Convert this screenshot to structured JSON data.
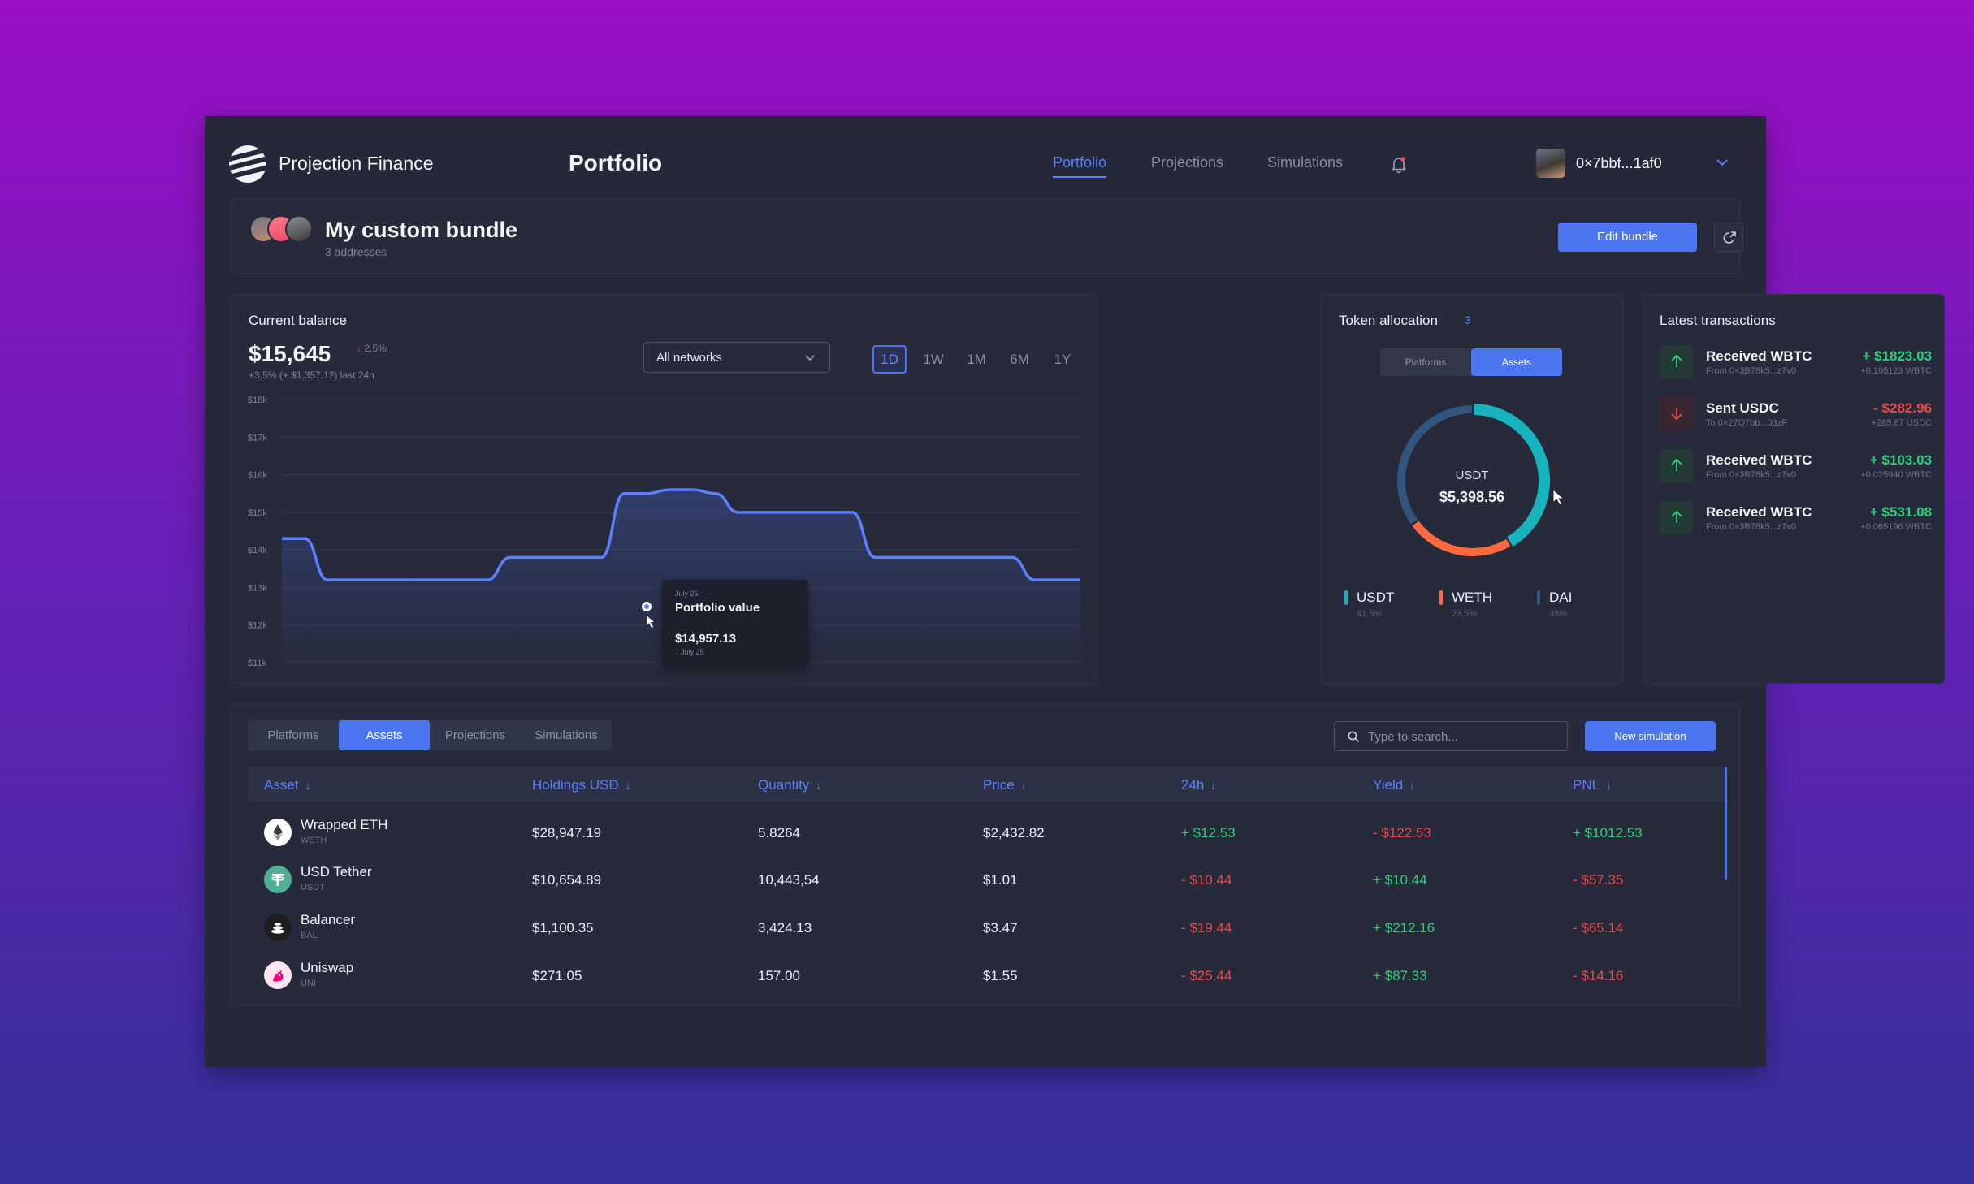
{
  "header": {
    "brand": "Projection Finance",
    "page_title": "Portfolio",
    "nav": [
      "Portfolio",
      "Projections",
      "Simulations"
    ],
    "active_nav": "Portfolio",
    "wallet": "0×7bbf...1af0"
  },
  "bundle": {
    "title": "My custom bundle",
    "subtitle": "3 addresses",
    "edit_label": "Edit bundle"
  },
  "balance": {
    "title": "Current balance",
    "value": "$15,645",
    "change": "2,5%",
    "sub": "+3,5% (+ $1,357.12) last 24h",
    "network": "All networks",
    "ranges": [
      "1D",
      "1W",
      "1M",
      "6M",
      "1Y"
    ],
    "active_range": "1D",
    "tooltip": {
      "date": "July 25",
      "title": "Portfolio value",
      "value": "$14,957.13",
      "sub": "July 25"
    }
  },
  "chart_data": {
    "type": "line",
    "title": "",
    "y_ticks": [
      "$18k",
      "$17k",
      "$16k",
      "$15k",
      "$14k",
      "$13k",
      "$12k",
      "$11k"
    ],
    "ylim": [
      11000,
      18000
    ],
    "grid": true,
    "series": [
      {
        "values": [
          14300,
          14300,
          13200,
          13200,
          13200,
          13200,
          13200,
          13200,
          13200,
          13200,
          13800,
          13800,
          13800,
          13800,
          13800,
          15500,
          15500,
          15600,
          15600,
          15500,
          15000,
          15000,
          15000,
          15000,
          15000,
          15000,
          13800,
          13800,
          13800,
          13800,
          13800,
          13800,
          13800,
          13200,
          13200,
          13200
        ],
        "color": "#5b7fff"
      }
    ]
  },
  "tokens": {
    "title": "Token allocation",
    "count": "3",
    "toggle": [
      "Platforms",
      "Assets"
    ],
    "active_toggle": "Assets",
    "center_label": "USDT",
    "center_value": "$5,398.56",
    "legend": [
      {
        "name": "USDT",
        "pct": "41,5%",
        "color": "#17b3bd"
      },
      {
        "name": "WETH",
        "pct": "23,5%",
        "color": "#ff6a3d"
      },
      {
        "name": "DAI",
        "pct": "35%",
        "color": "#33547c"
      }
    ]
  },
  "transactions": {
    "title": "Latest transactions",
    "items": [
      {
        "title": "Received WBTC",
        "sub": "From 0×3B78k5...z7v0",
        "amount": "+ $1823.03",
        "qty": "+0,105123 WBTC",
        "dir": "in"
      },
      {
        "title": "Sent USDC",
        "sub": "To 0×27Q7bb...03zF",
        "amount": "- $282.96",
        "qty": "+285.87 USDC",
        "dir": "out"
      },
      {
        "title": "Received WBTC",
        "sub": "From 0×3B78k5...z7v0",
        "amount": "+ $103.03",
        "qty": "+0,025940 WBTC",
        "dir": "in"
      },
      {
        "title": "Received WBTC",
        "sub": "From 0×3B78k5...z7v0",
        "amount": "+ $531.08",
        "qty": "+0,065196 WBTC",
        "dir": "in"
      }
    ]
  },
  "assets": {
    "tabs": [
      "Platforms",
      "Assets",
      "Projections",
      "Simulations"
    ],
    "active_tab": "Assets",
    "search_placeholder": "Type to search...",
    "new_sim_label": "New simulation",
    "columns": [
      "Asset",
      "Holdings USD",
      "Quantity",
      "Price",
      "24h",
      "Yield",
      "PNL"
    ],
    "rows": [
      {
        "name": "Wrapped ETH",
        "symbol": "WETH",
        "holdings": "$28,947.19",
        "quantity": "5.8264",
        "price": "$2,432.82",
        "h24": "+ $12.53",
        "yield": "- $122.53",
        "pnl": "+ $1012.53",
        "coin_color": "#ffffff"
      },
      {
        "name": "USD Tether",
        "symbol": "USDT",
        "holdings": "$10,654.89",
        "quantity": "10,443,54",
        "price": "$1.01",
        "h24": "- $10.44",
        "yield": "+ $10.44",
        "pnl": "- $57.35",
        "coin_color": "#50af95"
      },
      {
        "name": "Balancer",
        "symbol": "BAL",
        "holdings": "$1,100.35",
        "quantity": "3,424.13",
        "price": "$3.47",
        "h24": "- $19.44",
        "yield": "+ $212.16",
        "pnl": "- $65.14",
        "coin_color": "#1e1e1e"
      },
      {
        "name": "Uniswap",
        "symbol": "UNI",
        "holdings": "$271.05",
        "quantity": "157.00",
        "price": "$1.55",
        "h24": "- $25.44",
        "yield": "+ $87.33",
        "pnl": "- $14.16",
        "coin_color": "#ffe3ef"
      }
    ]
  }
}
